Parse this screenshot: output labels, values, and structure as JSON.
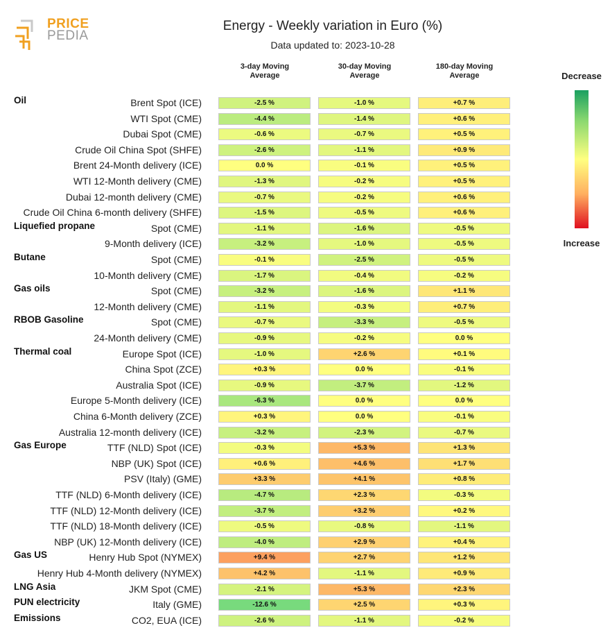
{
  "logo": {
    "line1": "PRICE",
    "line2": "PEDIA"
  },
  "chart_data": {
    "type": "table",
    "title": "Energy - Weekly variation in Euro (%)",
    "subtitle": "Data updated to: 2023-10-28",
    "columns": [
      "3-day Moving\nAverage",
      "30-day Moving\nAverage",
      "180-day Moving\nAverage"
    ],
    "legend": {
      "top": "Decrease",
      "bottom": "Increase"
    },
    "colors": {
      "decrease": "#1aa060",
      "neutral": "#ffff80",
      "increase": "#e01020"
    },
    "rows": [
      {
        "group": "Oil",
        "label": "Brent Spot (ICE)",
        "values": [
          -2.5,
          -1.0,
          0.7
        ],
        "texts": [
          "-2.5 %",
          "-1.0 %",
          "+0.7 %"
        ]
      },
      {
        "group": "",
        "label": "WTI Spot (CME)",
        "values": [
          -4.4,
          -1.4,
          0.6
        ],
        "texts": [
          "-4.4 %",
          "-1.4 %",
          "+0.6 %"
        ]
      },
      {
        "group": "",
        "label": "Dubai Spot (CME)",
        "values": [
          -0.6,
          -0.7,
          0.5
        ],
        "texts": [
          "-0.6 %",
          "-0.7 %",
          "+0.5 %"
        ]
      },
      {
        "group": "",
        "label": "Crude Oil China Spot (SHFE)",
        "values": [
          -2.6,
          -1.1,
          0.9
        ],
        "texts": [
          "-2.6 %",
          "-1.1 %",
          "+0.9 %"
        ]
      },
      {
        "group": "",
        "label": "Brent 24-Month delivery (ICE)",
        "values": [
          0.0,
          -0.1,
          0.5
        ],
        "texts": [
          "0.0 %",
          "-0.1 %",
          "+0.5 %"
        ]
      },
      {
        "group": "",
        "label": "WTI 12-Month delivery (CME)",
        "values": [
          -1.3,
          -0.2,
          0.5
        ],
        "texts": [
          "-1.3 %",
          "-0.2 %",
          "+0.5 %"
        ]
      },
      {
        "group": "",
        "label": "Dubai 12-month delivery (CME)",
        "values": [
          -0.7,
          -0.2,
          0.6
        ],
        "texts": [
          "-0.7 %",
          "-0.2 %",
          "+0.6 %"
        ]
      },
      {
        "group": "",
        "label": "Crude Oil China 6-month delivery (SHFE)",
        "values": [
          -1.5,
          -0.5,
          0.6
        ],
        "texts": [
          "-1.5 %",
          "-0.5 %",
          "+0.6 %"
        ]
      },
      {
        "group": "Liquefied propane",
        "label": "Spot (CME)",
        "values": [
          -1.1,
          -1.6,
          -0.5
        ],
        "texts": [
          "-1.1 %",
          "-1.6 %",
          "-0.5 %"
        ]
      },
      {
        "group": "",
        "label": "9-Month delivery (ICE)",
        "values": [
          -3.2,
          -1.0,
          -0.5
        ],
        "texts": [
          "-3.2 %",
          "-1.0 %",
          "-0.5 %"
        ]
      },
      {
        "group": "Butane",
        "label": "Spot (CME)",
        "values": [
          -0.1,
          -2.5,
          -0.5
        ],
        "texts": [
          "-0.1 %",
          "-2.5 %",
          "-0.5 %"
        ]
      },
      {
        "group": "",
        "label": "10-Month delivery (CME)",
        "values": [
          -1.7,
          -0.4,
          -0.2
        ],
        "texts": [
          "-1.7 %",
          "-0.4 %",
          "-0.2 %"
        ]
      },
      {
        "group": "Gas oils",
        "label": "Spot (CME)",
        "values": [
          -3.2,
          -1.6,
          1.1
        ],
        "texts": [
          "-3.2 %",
          "-1.6 %",
          "+1.1 %"
        ]
      },
      {
        "group": "",
        "label": "12-Month delivery (CME)",
        "values": [
          -1.1,
          -0.3,
          0.7
        ],
        "texts": [
          "-1.1 %",
          "-0.3 %",
          "+0.7 %"
        ]
      },
      {
        "group": "RBOB Gasoline",
        "label": "Spot (CME)",
        "values": [
          -0.7,
          -3.3,
          -0.5
        ],
        "texts": [
          "-0.7 %",
          "-3.3 %",
          "-0.5 %"
        ]
      },
      {
        "group": "",
        "label": "24-Month delivery (CME)",
        "values": [
          -0.9,
          -0.2,
          0.0
        ],
        "texts": [
          "-0.9 %",
          "-0.2 %",
          "0.0 %"
        ]
      },
      {
        "group": "Thermal coal",
        "label": "Europe Spot (ICE)",
        "values": [
          -1.0,
          2.6,
          0.1
        ],
        "texts": [
          "-1.0 %",
          "+2.6 %",
          "+0.1 %"
        ]
      },
      {
        "group": "",
        "label": "China Spot (ZCE)",
        "values": [
          0.3,
          0.0,
          -0.1
        ],
        "texts": [
          "+0.3 %",
          "0.0 %",
          "-0.1 %"
        ]
      },
      {
        "group": "",
        "label": "Australia Spot (ICE)",
        "values": [
          -0.9,
          -3.7,
          -1.2
        ],
        "texts": [
          "-0.9 %",
          "-3.7 %",
          "-1.2 %"
        ]
      },
      {
        "group": "",
        "label": "Europe 5-Month delivery (ICE)",
        "values": [
          -6.3,
          0.0,
          0.0
        ],
        "texts": [
          "-6.3 %",
          "0.0 %",
          "0.0 %"
        ]
      },
      {
        "group": "",
        "label": "China 6-Month delivery (ZCE)",
        "values": [
          0.3,
          0.0,
          -0.1
        ],
        "texts": [
          "+0.3 %",
          "0.0 %",
          "-0.1 %"
        ]
      },
      {
        "group": "",
        "label": "Australia 12-month delivery (ICE)",
        "values": [
          -3.2,
          -2.3,
          -0.7
        ],
        "texts": [
          "-3.2 %",
          "-2.3 %",
          "-0.7 %"
        ]
      },
      {
        "group": "Gas Europe",
        "label": "TTF (NLD) Spot (ICE)",
        "values": [
          -0.3,
          5.3,
          1.3
        ],
        "texts": [
          "-0.3 %",
          "+5.3 %",
          "+1.3 %"
        ]
      },
      {
        "group": "",
        "label": "NBP (UK) Spot (ICE)",
        "values": [
          0.6,
          4.6,
          1.7
        ],
        "texts": [
          "+0.6 %",
          "+4.6 %",
          "+1.7 %"
        ]
      },
      {
        "group": "",
        "label": "PSV (Italy) (GME)",
        "values": [
          3.3,
          4.1,
          0.8
        ],
        "texts": [
          "+3.3 %",
          "+4.1 %",
          "+0.8 %"
        ]
      },
      {
        "group": "",
        "label": "TTF (NLD) 6-Month delivery (ICE)",
        "values": [
          -4.7,
          2.3,
          -0.3
        ],
        "texts": [
          "-4.7 %",
          "+2.3 %",
          "-0.3 %"
        ]
      },
      {
        "group": "",
        "label": "TTF (NLD) 12-Month delivery (ICE)",
        "values": [
          -3.7,
          3.2,
          0.2
        ],
        "texts": [
          "-3.7 %",
          "+3.2 %",
          "+0.2 %"
        ]
      },
      {
        "group": "",
        "label": "TTF (NLD) 18-Month delivery (ICE)",
        "values": [
          -0.5,
          -0.8,
          -1.1
        ],
        "texts": [
          "-0.5 %",
          "-0.8 %",
          "-1.1 %"
        ]
      },
      {
        "group": "",
        "label": "NBP (UK) 12-Month delivery (ICE)",
        "values": [
          -4.0,
          2.9,
          0.4
        ],
        "texts": [
          "-4.0 %",
          "+2.9 %",
          "+0.4 %"
        ]
      },
      {
        "group": "Gas US",
        "label": "Henry Hub Spot (NYMEX)",
        "values": [
          9.4,
          2.7,
          1.2
        ],
        "texts": [
          "+9.4 %",
          "+2.7 %",
          "+1.2 %"
        ]
      },
      {
        "group": "",
        "label": "Henry Hub 4-Month delivery (NYMEX)",
        "values": [
          4.2,
          -1.1,
          0.9
        ],
        "texts": [
          "+4.2 %",
          "-1.1 %",
          "+0.9 %"
        ]
      },
      {
        "group": "LNG Asia",
        "label": "JKM Spot (CME)",
        "values": [
          -2.1,
          5.3,
          2.3
        ],
        "texts": [
          "-2.1 %",
          "+5.3 %",
          "+2.3 %"
        ]
      },
      {
        "group": "PUN electricity",
        "label": "Italy (GME)",
        "values": [
          -12.6,
          2.5,
          0.3
        ],
        "texts": [
          "-12.6 %",
          "+2.5 %",
          "+0.3 %"
        ]
      },
      {
        "group": "Emissions",
        "label": "CO2, EUA (ICE)",
        "values": [
          -2.6,
          -1.1,
          -0.2
        ],
        "texts": [
          "-2.6 %",
          "-1.1 %",
          "-0.2 %"
        ]
      }
    ]
  }
}
